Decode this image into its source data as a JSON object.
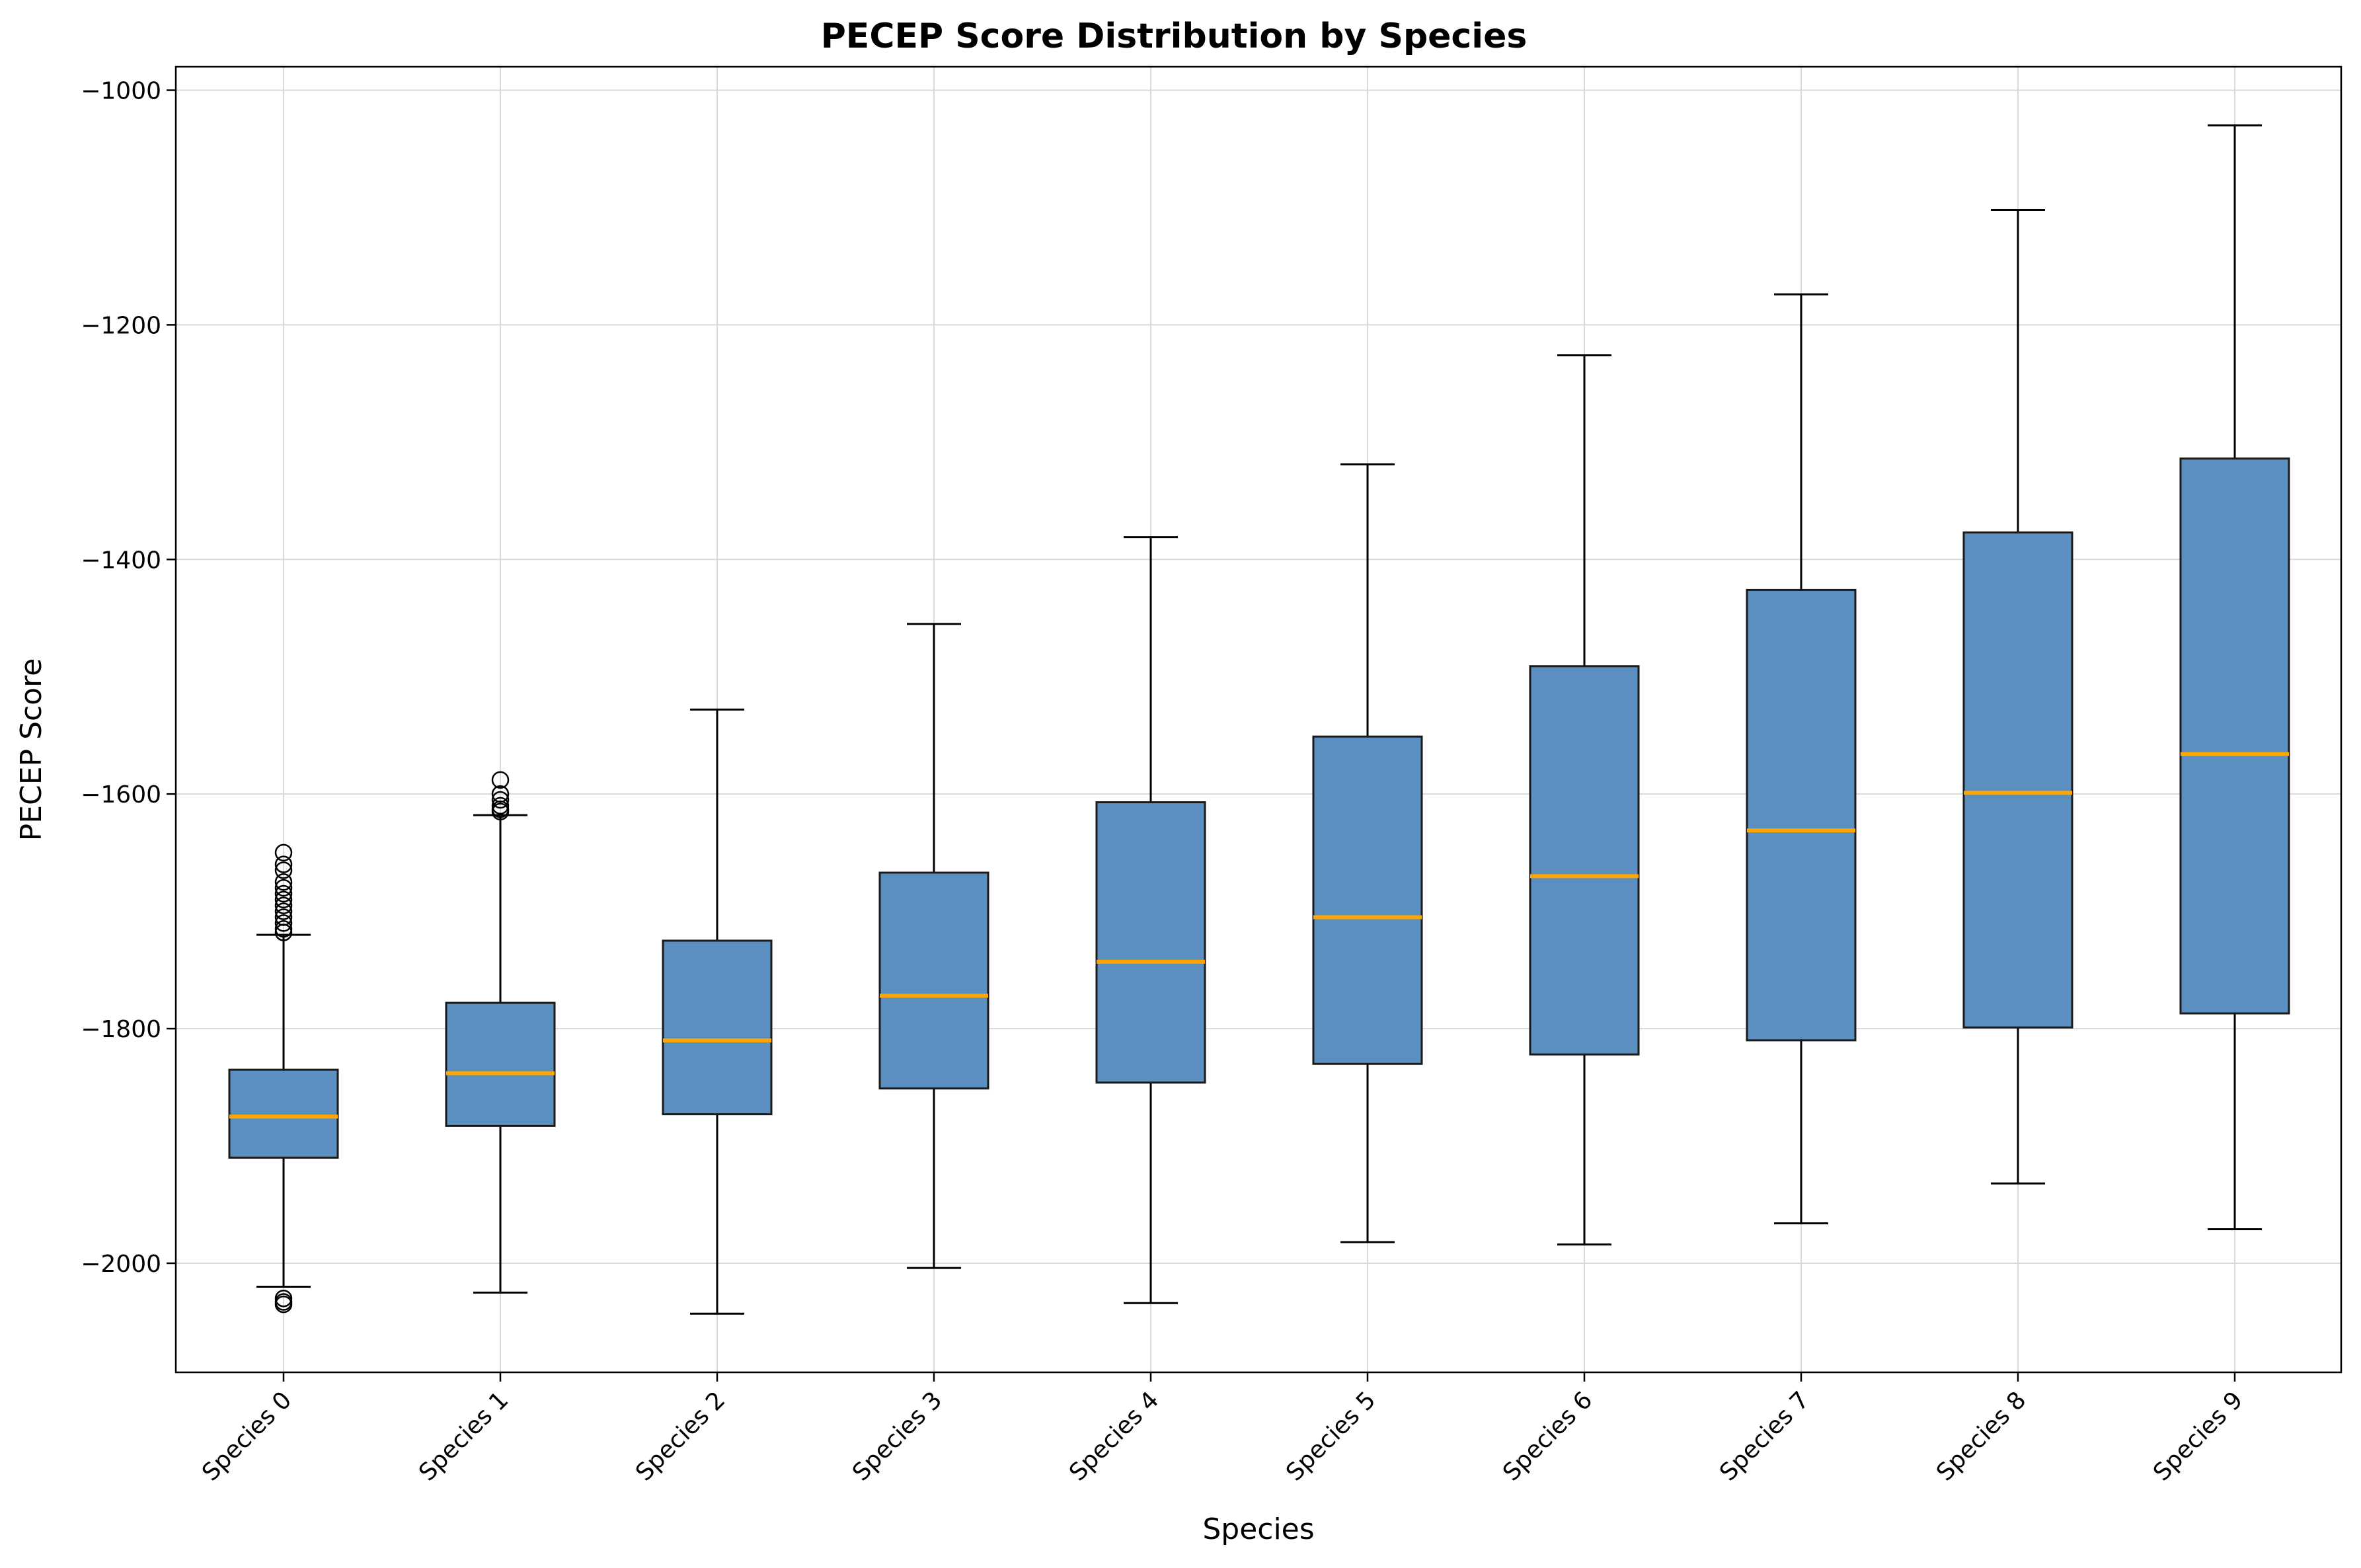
{
  "chart_data": {
    "type": "boxplot",
    "title": "PECEP Score Distribution by Species",
    "xlabel": "Species",
    "ylabel": "PECEP Score",
    "ylim": [
      -2093,
      -980
    ],
    "yticks": [
      -1000,
      -1200,
      -1400,
      -1600,
      -1800,
      -2000
    ],
    "grid": true,
    "colors": {
      "box_fill": "#5b8fbf",
      "box_edge": "#1a1a1a",
      "median": "#ffa500",
      "whisker": "#000000"
    },
    "categories": [
      "Species 0",
      "Species 1",
      "Species 2",
      "Species 3",
      "Species 4",
      "Species 5",
      "Species 6",
      "Species 7",
      "Species 8",
      "Species 9"
    ],
    "boxes": [
      {
        "whisker_low": -2020,
        "q1": -1910,
        "median": -1875,
        "q3": -1835,
        "whisker_high": -1720,
        "outliers_high": [
          -1650,
          -1660,
          -1665,
          -1675,
          -1680,
          -1685,
          -1690,
          -1695,
          -1700,
          -1705,
          -1710,
          -1715,
          -1718
        ],
        "outliers_low": [
          -2030,
          -2033,
          -2035
        ]
      },
      {
        "whisker_low": -2025,
        "q1": -1883,
        "median": -1838,
        "q3": -1778,
        "whisker_high": -1618,
        "outliers_high": [
          -1588,
          -1600,
          -1605,
          -1610,
          -1613,
          -1615
        ],
        "outliers_low": []
      },
      {
        "whisker_low": -2043,
        "q1": -1873,
        "median": -1810,
        "q3": -1725,
        "whisker_high": -1528,
        "outliers_high": [],
        "outliers_low": []
      },
      {
        "whisker_low": -2004,
        "q1": -1851,
        "median": -1772,
        "q3": -1667,
        "whisker_high": -1455,
        "outliers_high": [],
        "outliers_low": []
      },
      {
        "whisker_low": -2034,
        "q1": -1846,
        "median": -1743,
        "q3": -1607,
        "whisker_high": -1381,
        "outliers_high": [],
        "outliers_low": []
      },
      {
        "whisker_low": -1982,
        "q1": -1830,
        "median": -1705,
        "q3": -1551,
        "whisker_high": -1319,
        "outliers_high": [],
        "outliers_low": []
      },
      {
        "whisker_low": -1984,
        "q1": -1822,
        "median": -1670,
        "q3": -1491,
        "whisker_high": -1226,
        "outliers_high": [],
        "outliers_low": []
      },
      {
        "whisker_low": -1966,
        "q1": -1810,
        "median": -1631,
        "q3": -1426,
        "whisker_high": -1174,
        "outliers_high": [],
        "outliers_low": []
      },
      {
        "whisker_low": -1932,
        "q1": -1799,
        "median": -1599,
        "q3": -1377,
        "whisker_high": -1102,
        "outliers_high": [],
        "outliers_low": []
      },
      {
        "whisker_low": -1971,
        "q1": -1787,
        "median": -1566,
        "q3": -1314,
        "whisker_high": -1030,
        "outliers_high": [],
        "outliers_low": []
      }
    ]
  }
}
